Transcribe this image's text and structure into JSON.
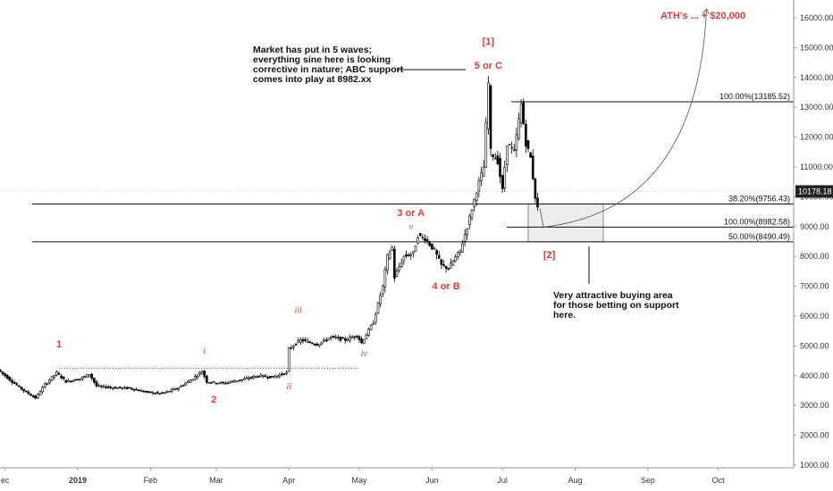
{
  "chart_data": {
    "type": "candlestick",
    "y_axis": {
      "ticks": [
        "1000.00",
        "2000.00",
        "3000.00",
        "4000.00",
        "5000.00",
        "6000.00",
        "7000.00",
        "8000.00",
        "9000.00",
        "10000.00",
        "11000.00",
        "12000.00",
        "13000.00",
        "14000.00",
        "15000.00",
        "16000.00"
      ],
      "range": [
        1000,
        16400
      ],
      "scale": "linear",
      "position": "right"
    },
    "x_axis": {
      "ticks": [
        {
          "label": "ec",
          "date": "2018-12-01",
          "bold": false
        },
        {
          "label": "2019",
          "date": "2019-01-01",
          "bold": true
        },
        {
          "label": "Feb",
          "date": "2019-02-01",
          "bold": false
        },
        {
          "label": "Mar",
          "date": "2019-03-01",
          "bold": false
        },
        {
          "label": "Apr",
          "date": "2019-04-01",
          "bold": false
        },
        {
          "label": "May",
          "date": "2019-05-01",
          "bold": false
        },
        {
          "label": "Jun",
          "date": "2019-06-01",
          "bold": false
        },
        {
          "label": "Jul",
          "date": "2019-07-01",
          "bold": false
        },
        {
          "label": "Aug",
          "date": "2019-08-01",
          "bold": false
        },
        {
          "label": "Sep",
          "date": "2019-09-01",
          "bold": false
        },
        {
          "label": "Oct",
          "date": "2019-10-01",
          "bold": false
        }
      ]
    },
    "current_price": "10178.18",
    "price_path": [
      {
        "date": "2018-11-29",
        "price": 4200
      },
      {
        "date": "2018-12-05",
        "price": 3800
      },
      {
        "date": "2018-12-10",
        "price": 3500
      },
      {
        "date": "2018-12-15",
        "price": 3250
      },
      {
        "date": "2018-12-19",
        "price": 3700
      },
      {
        "date": "2018-12-24",
        "price": 4100
      },
      {
        "date": "2018-12-28",
        "price": 3800
      },
      {
        "date": "2019-01-03",
        "price": 3900
      },
      {
        "date": "2019-01-07",
        "price": 4050
      },
      {
        "date": "2019-01-10",
        "price": 3650
      },
      {
        "date": "2019-01-17",
        "price": 3600
      },
      {
        "date": "2019-01-24",
        "price": 3580
      },
      {
        "date": "2019-01-31",
        "price": 3450
      },
      {
        "date": "2019-02-07",
        "price": 3400
      },
      {
        "date": "2019-02-14",
        "price": 3600
      },
      {
        "date": "2019-02-20",
        "price": 3900
      },
      {
        "date": "2019-02-24",
        "price": 4150
      },
      {
        "date": "2019-02-26",
        "price": 3800
      },
      {
        "date": "2019-03-05",
        "price": 3750
      },
      {
        "date": "2019-03-12",
        "price": 3850
      },
      {
        "date": "2019-03-20",
        "price": 4000
      },
      {
        "date": "2019-03-26",
        "price": 3950
      },
      {
        "date": "2019-04-01",
        "price": 4100
      },
      {
        "date": "2019-04-02",
        "price": 4900
      },
      {
        "date": "2019-04-07",
        "price": 5200
      },
      {
        "date": "2019-04-14",
        "price": 5050
      },
      {
        "date": "2019-04-20",
        "price": 5300
      },
      {
        "date": "2019-04-26",
        "price": 5200
      },
      {
        "date": "2019-05-01",
        "price": 5350
      },
      {
        "date": "2019-05-03",
        "price": 5100
      },
      {
        "date": "2019-05-08",
        "price": 5800
      },
      {
        "date": "2019-05-12",
        "price": 7000
      },
      {
        "date": "2019-05-14",
        "price": 8000
      },
      {
        "date": "2019-05-16",
        "price": 8300
      },
      {
        "date": "2019-05-17",
        "price": 7300
      },
      {
        "date": "2019-05-21",
        "price": 8000
      },
      {
        "date": "2019-05-25",
        "price": 8100
      },
      {
        "date": "2019-05-27",
        "price": 8700
      },
      {
        "date": "2019-05-30",
        "price": 8600
      },
      {
        "date": "2019-06-03",
        "price": 8200
      },
      {
        "date": "2019-06-06",
        "price": 7700
      },
      {
        "date": "2019-06-09",
        "price": 7600
      },
      {
        "date": "2019-06-14",
        "price": 8200
      },
      {
        "date": "2019-06-17",
        "price": 9000
      },
      {
        "date": "2019-06-21",
        "price": 10200
      },
      {
        "date": "2019-06-24",
        "price": 11000
      },
      {
        "date": "2019-06-26",
        "price": 13800
      },
      {
        "date": "2019-06-27",
        "price": 11500
      },
      {
        "date": "2019-06-30",
        "price": 11200
      },
      {
        "date": "2019-07-02",
        "price": 10200
      },
      {
        "date": "2019-07-04",
        "price": 11800
      },
      {
        "date": "2019-07-07",
        "price": 11500
      },
      {
        "date": "2019-07-10",
        "price": 13100
      },
      {
        "date": "2019-07-12",
        "price": 11800
      },
      {
        "date": "2019-07-14",
        "price": 11300
      },
      {
        "date": "2019-07-16",
        "price": 10000
      },
      {
        "date": "2019-07-17",
        "price": 9600
      }
    ],
    "fib_levels": [
      {
        "label": "100.00%(13185.52)",
        "value": 13185.52
      },
      {
        "label": "38.20%(9756.43)",
        "value": 9756.43
      },
      {
        "label": "100.00%(8982.58)",
        "value": 8982.58
      },
      {
        "label": "50.00%(8490.49)",
        "value": 8490.49
      }
    ],
    "support_zone": {
      "from_date": "2019-07-12",
      "to_date": "2019-08-13",
      "low": 8490.49,
      "high": 9756.43
    },
    "dotted_level": {
      "from_date": "2018-12-24",
      "to_date": "2019-05-01",
      "value": 4250
    },
    "wave_labels": [
      {
        "text": "1",
        "date": "2018-12-24",
        "price": 4950,
        "style": "bold"
      },
      {
        "text": "2",
        "date": "2019-02-28",
        "price": 3100,
        "style": "bold"
      },
      {
        "text": "i",
        "date": "2019-02-24",
        "price": 4750,
        "style": "italic"
      },
      {
        "text": "ii",
        "date": "2019-04-01",
        "price": 3550,
        "style": "italic"
      },
      {
        "text": "iii",
        "date": "2019-04-05",
        "price": 6100,
        "style": "italic"
      },
      {
        "text": "iv",
        "date": "2019-05-03",
        "price": 4650,
        "style": "italic"
      },
      {
        "text": "v",
        "date": "2019-05-23",
        "price": 8900,
        "style": "italic"
      },
      {
        "text": "3 or A",
        "date": "2019-05-23",
        "price": 9350,
        "style": "bold"
      },
      {
        "text": "4 or B",
        "date": "2019-06-07",
        "price": 6900,
        "style": "bold"
      },
      {
        "text": "5 or C",
        "date": "2019-06-25",
        "price": 14300,
        "style": "bold"
      },
      {
        "text": "[1]",
        "date": "2019-06-25",
        "price": 15100,
        "style": "bold"
      },
      {
        "text": "[2]",
        "date": "2019-07-21",
        "price": 7950,
        "style": "bold"
      }
    ],
    "target_label": "ATH's ... + $20,000",
    "annotations": {
      "wave_note": [
        "Market has put in 5 waves;",
        "everything sine here is looking",
        "corrective in nature; ABC support",
        "comes into play at 8982.xx"
      ],
      "buy_note": [
        "Very attractive buying area",
        "for those betting on support",
        "here."
      ]
    }
  },
  "colors": {
    "red": "#e53935",
    "line": "#111111",
    "zone": "#ededed",
    "axis_text": "#333333",
    "price_tag": "#222222"
  }
}
